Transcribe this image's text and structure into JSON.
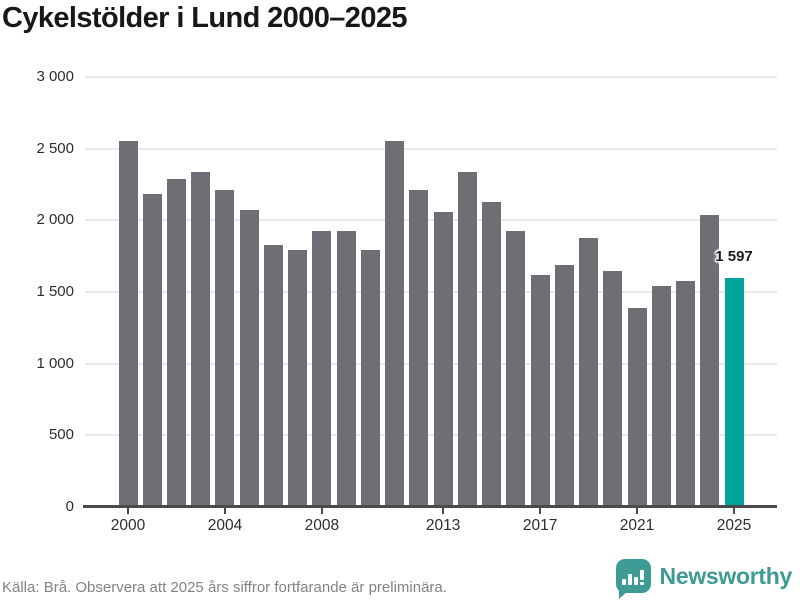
{
  "title": "Cykelstölder i Lund 2000–2025",
  "chart_data": {
    "type": "bar",
    "title": "Cykelstölder i Lund 2000–2025",
    "x": [
      2000,
      2001,
      2002,
      2003,
      2004,
      2005,
      2006,
      2007,
      2008,
      2009,
      2010,
      2011,
      2012,
      2013,
      2014,
      2015,
      2016,
      2017,
      2018,
      2019,
      2020,
      2021,
      2022,
      2023,
      2024,
      2025
    ],
    "values": [
      2550,
      2185,
      2290,
      2335,
      2210,
      2075,
      1830,
      1795,
      1925,
      1925,
      1790,
      2555,
      2215,
      2060,
      2335,
      2130,
      1925,
      1620,
      1690,
      1875,
      1645,
      1390,
      1540,
      1580,
      2040,
      1597
    ],
    "highlight_year": 2025,
    "highlight_value_label": "1 597",
    "x_tick_labels": [
      "2000",
      "2004",
      "2008",
      "2013",
      "2017",
      "2021",
      "2025"
    ],
    "y_ticks": [
      0,
      500,
      1000,
      1500,
      2000,
      2500,
      3000
    ],
    "y_tick_labels": [
      "0",
      "500",
      "1 000",
      "1 500",
      "2 000",
      "2 500",
      "3 000"
    ],
    "ylim": [
      0,
      3000
    ],
    "grid": "horizontal",
    "legend": "none",
    "bar_color": "#6e6e74",
    "highlight_color": "#00a49b",
    "axis_color": "#4a4a4a",
    "grid_color": "#e9e9e9"
  },
  "footer": {
    "source_text": "Källa: Brå. Observera att 2025 års siffror fortfarande är preliminära.",
    "brand": "Newsworthy",
    "brand_color": "#3d9b94"
  }
}
